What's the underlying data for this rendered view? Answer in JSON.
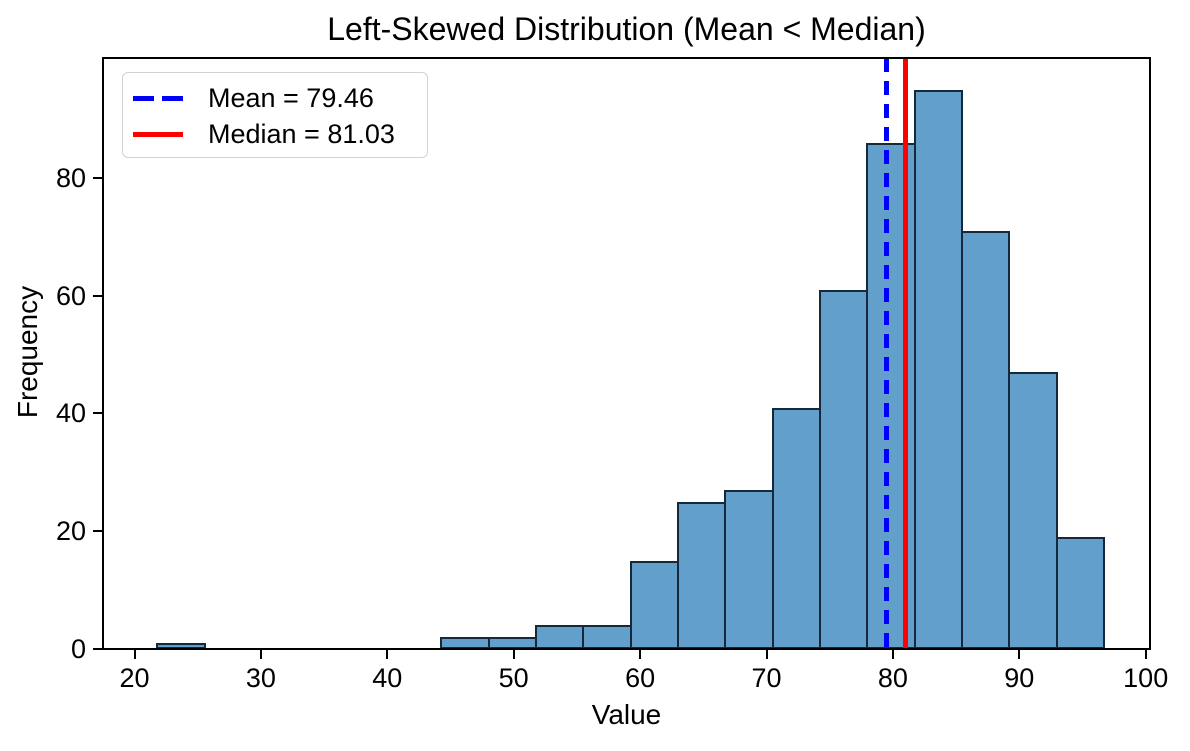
{
  "title": "Left-Skewed Distribution (Mean < Median)",
  "xlabel": "Value",
  "ylabel": "Frequency",
  "legend": [
    {
      "label": "Mean = 79.46",
      "color": "#0000ff",
      "style": "dashed"
    },
    {
      "label": "Median = 81.03",
      "color": "#ff0000",
      "style": "solid"
    }
  ],
  "chart_data": {
    "type": "bar",
    "subtype": "histogram",
    "title": "Left-Skewed Distribution (Mean < Median)",
    "xlabel": "Value",
    "ylabel": "Frequency",
    "bin_edges": [
      21.8,
      25.55,
      29.29,
      33.04,
      36.78,
      40.53,
      44.27,
      48.02,
      51.76,
      55.51,
      59.25,
      63.0,
      66.74,
      70.49,
      74.23,
      77.98,
      81.72,
      85.47,
      89.21,
      92.96,
      96.7
    ],
    "counts": [
      1,
      0,
      0,
      0,
      0,
      0,
      2,
      2,
      4,
      4,
      15,
      25,
      27,
      41,
      61,
      86,
      95,
      71,
      47,
      19
    ],
    "n_samples": 500,
    "mean": 79.46,
    "median": 81.03,
    "xticks": [
      20,
      30,
      40,
      50,
      60,
      70,
      80,
      90,
      100
    ],
    "yticks": [
      0,
      20,
      40,
      60,
      80
    ],
    "xlim": [
      17.51,
      100.34
    ],
    "ylim": [
      0,
      100.34
    ],
    "grid": false,
    "legend_position": "upper left",
    "bar_color": "#62a0cb",
    "bar_edge_color": "#16293a",
    "mean_line_color": "#0000ff",
    "median_line_color": "#ff0000"
  }
}
